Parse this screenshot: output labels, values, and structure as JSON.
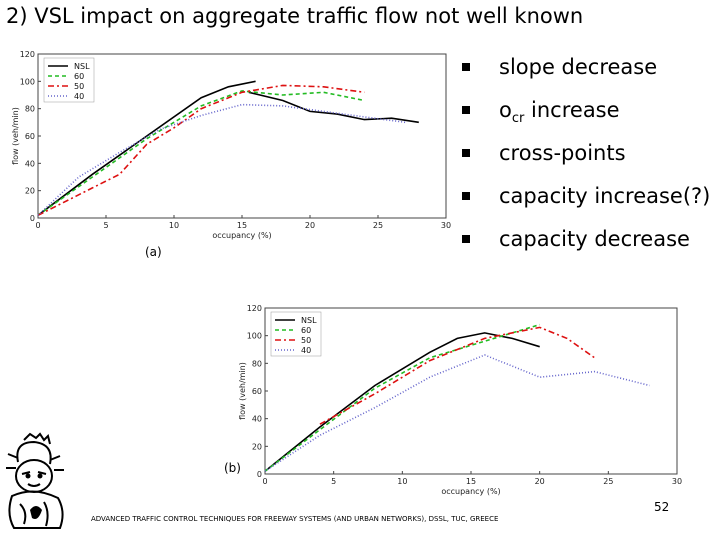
{
  "title": "2) VSL impact on aggregate traffic flow not well known",
  "bullets": [
    {
      "text": "slope decrease"
    },
    {
      "text": "o",
      "sub": "cr",
      "suffix": " increase"
    },
    {
      "text": "cross-points"
    },
    {
      "text": "capacity increase(?)"
    },
    {
      "text": "capacity decrease"
    }
  ],
  "footer": "ADVANCED TRAFFIC CONTROL TECHNIQUES FOR FREEWAY SYSTEMS (AND URBAN NETWORKS), DSSL, TUC, GREECE",
  "page_number": "52",
  "logo_icon": "greek-figure-logo-icon",
  "chart_data": [
    {
      "type": "line",
      "panel_label": "(a)",
      "xlabel": "occupancy (%)",
      "ylabel": "flow (veh/min)",
      "xlim": [
        0,
        30
      ],
      "ylim": [
        0,
        120
      ],
      "xticks": [
        0,
        5,
        10,
        15,
        20,
        25,
        30
      ],
      "yticks": [
        0,
        20,
        40,
        60,
        80,
        100,
        120
      ],
      "grid": false,
      "legend": "top-left",
      "series": [
        {
          "name": "NSL",
          "color": "#000000",
          "dash": "",
          "x": [
            0,
            4,
            8,
            12,
            14,
            16
          ],
          "y": [
            2,
            32,
            60,
            88,
            96,
            100
          ]
        },
        {
          "name": "NSL",
          "color": "#000000",
          "dash": "",
          "x": [
            15.5,
            18,
            20,
            22,
            24,
            26,
            28
          ],
          "y": [
            92,
            86,
            78,
            76,
            72,
            73,
            70
          ]
        },
        {
          "name": "60",
          "color": "#22bb22",
          "dash": "4,3",
          "x": [
            0,
            4,
            8,
            12,
            15,
            18,
            21,
            24
          ],
          "y": [
            2,
            30,
            58,
            82,
            93,
            90,
            92,
            86
          ]
        },
        {
          "name": "50",
          "color": "#dd1111",
          "dash": "6,3,2,3",
          "x": [
            0,
            4,
            6,
            8,
            10,
            12,
            15,
            18,
            21,
            24
          ],
          "y": [
            2,
            22,
            32,
            54,
            66,
            80,
            92,
            97,
            96,
            92
          ]
        },
        {
          "name": "40",
          "color": "#6666cc",
          "dash": "1,2",
          "x": [
            0,
            3,
            6,
            9,
            12,
            15,
            18,
            21,
            24,
            27
          ],
          "y": [
            2,
            30,
            48,
            65,
            75,
            83,
            82,
            78,
            74,
            70
          ]
        }
      ]
    },
    {
      "type": "line",
      "panel_label": "(b)",
      "xlabel": "occupancy (%)",
      "ylabel": "flow (veh/min)",
      "xlim": [
        0,
        30
      ],
      "ylim": [
        0,
        120
      ],
      "xticks": [
        0,
        5,
        10,
        15,
        20,
        25,
        30
      ],
      "yticks": [
        0,
        20,
        40,
        60,
        80,
        100,
        120
      ],
      "grid": false,
      "legend": "top-left",
      "series": [
        {
          "name": "NSL",
          "color": "#000000",
          "dash": "",
          "x": [
            0,
            4,
            8,
            12,
            14,
            16,
            18,
            20
          ],
          "y": [
            2,
            34,
            64,
            88,
            98,
            102,
            98,
            92
          ]
        },
        {
          "name": "60",
          "color": "#22bb22",
          "dash": "4,3",
          "x": [
            0,
            4,
            8,
            12,
            16,
            20
          ],
          "y": [
            2,
            32,
            62,
            84,
            96,
            108
          ]
        },
        {
          "name": "50",
          "color": "#dd1111",
          "dash": "6,3,2,3",
          "x": [
            4,
            8,
            12,
            16,
            20,
            22,
            24
          ],
          "y": [
            36,
            58,
            82,
            98,
            106,
            98,
            84
          ]
        },
        {
          "name": "40",
          "color": "#6666cc",
          "dash": "1,2",
          "x": [
            0,
            4,
            8,
            12,
            16,
            18,
            20,
            24,
            28
          ],
          "y": [
            2,
            28,
            48,
            70,
            86,
            78,
            70,
            74,
            64
          ]
        }
      ]
    }
  ]
}
